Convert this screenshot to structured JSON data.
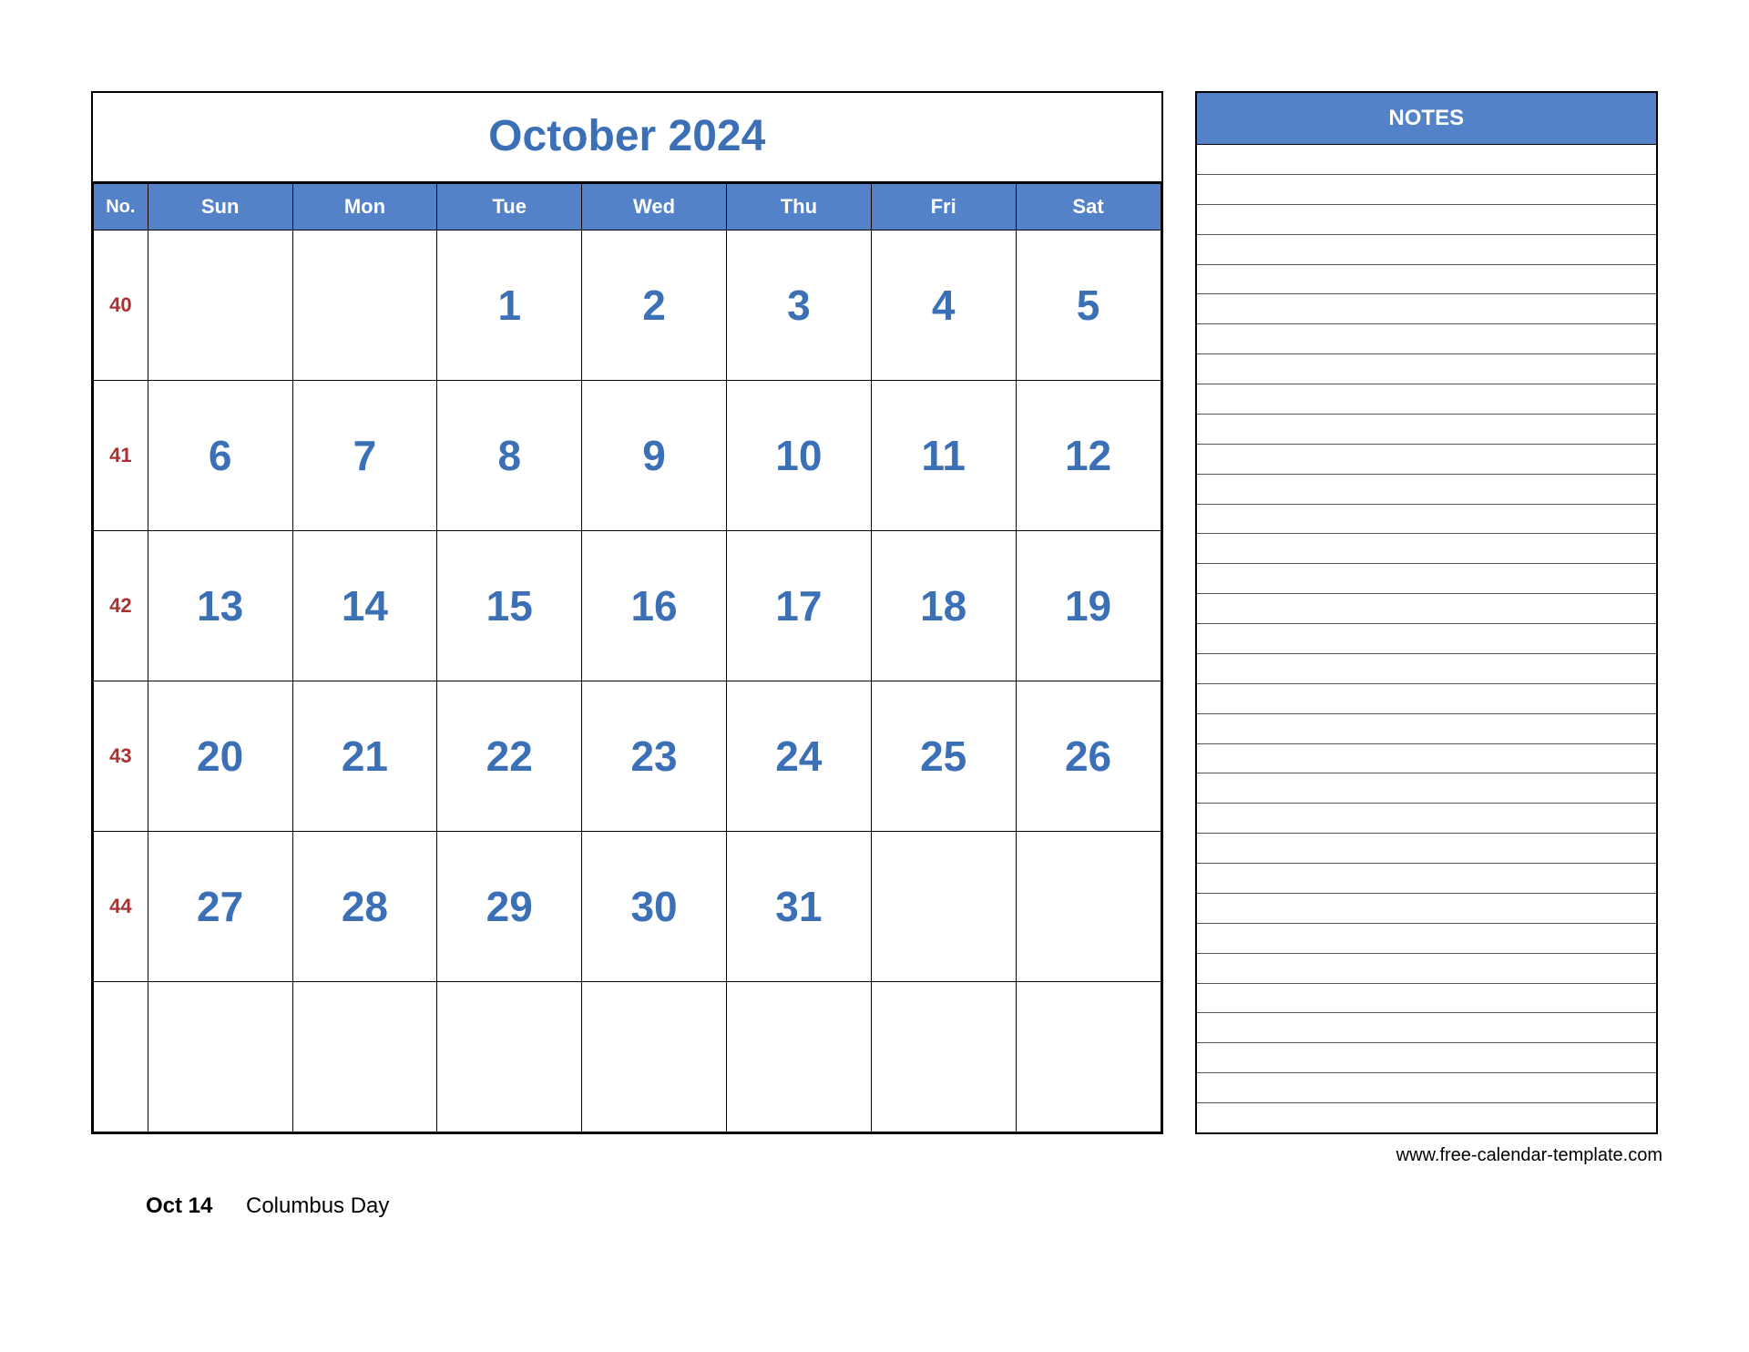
{
  "calendar": {
    "title": "October 2024",
    "title_color": "#3b6fb6",
    "header_bg": "#5482c8",
    "header_fg": "#ffffff",
    "week_no_color": "#a83232",
    "day_number_color": "#3b6fb6",
    "border_color": "#000000",
    "columns": {
      "no": "No.",
      "days": [
        "Sun",
        "Mon",
        "Tue",
        "Wed",
        "Thu",
        "Fri",
        "Sat"
      ]
    },
    "rows": [
      {
        "week": "40",
        "days": [
          "",
          "",
          "1",
          "2",
          "3",
          "4",
          "5"
        ]
      },
      {
        "week": "41",
        "days": [
          "6",
          "7",
          "8",
          "9",
          "10",
          "11",
          "12"
        ]
      },
      {
        "week": "42",
        "days": [
          "13",
          "14",
          "15",
          "16",
          "17",
          "18",
          "19"
        ]
      },
      {
        "week": "43",
        "days": [
          "20",
          "21",
          "22",
          "23",
          "24",
          "25",
          "26"
        ]
      },
      {
        "week": "44",
        "days": [
          "27",
          "28",
          "29",
          "30",
          "31",
          "",
          ""
        ]
      },
      {
        "week": "",
        "days": [
          "",
          "",
          "",
          "",
          "",
          "",
          ""
        ]
      }
    ]
  },
  "notes": {
    "header": "NOTES",
    "line_count": 33
  },
  "footer": {
    "url": "www.free-calendar-template.com"
  },
  "holidays": [
    {
      "date": "Oct 14",
      "name": "Columbus Day"
    }
  ]
}
